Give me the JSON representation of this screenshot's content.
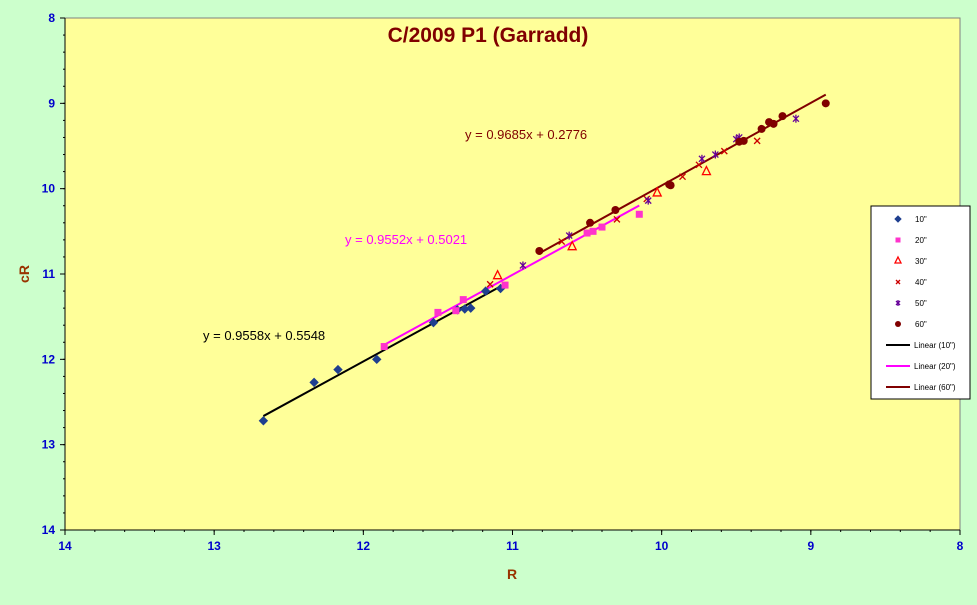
{
  "chart_data": {
    "type": "scatter",
    "title": "C/2009 P1 (Garradd)",
    "xlabel": "R",
    "ylabel": "cR",
    "xlim": [
      14,
      8
    ],
    "ylim": [
      14,
      8
    ],
    "x_reversed": true,
    "y_reversed": true,
    "x_ticks": [
      "14",
      "13",
      "12",
      "11",
      "10",
      "9",
      "8"
    ],
    "y_ticks": [
      "8",
      "9",
      "10",
      "11",
      "12",
      "13",
      "14"
    ],
    "grid": false,
    "legend_position": "right",
    "plot_background": "#ffff99",
    "series": [
      {
        "name": "10\"",
        "marker": "diamond",
        "color": "#1f3f8f",
        "x": [
          12.67,
          12.33,
          12.17,
          11.91,
          11.53,
          11.37,
          11.32,
          11.28,
          11.18,
          11.08
        ],
        "y": [
          12.72,
          12.27,
          12.12,
          12.0,
          11.57,
          11.42,
          11.41,
          11.4,
          11.2,
          11.17
        ]
      },
      {
        "name": "20\"",
        "marker": "square",
        "color": "#ff33cc",
        "x": [
          11.86,
          11.5,
          11.38,
          11.33,
          11.05,
          10.5,
          10.46,
          10.4,
          10.15
        ],
        "y": [
          11.85,
          11.45,
          11.43,
          11.3,
          11.13,
          10.52,
          10.5,
          10.45,
          10.3
        ]
      },
      {
        "name": "30\"",
        "marker": "triangle",
        "color": "#ff0000",
        "x": [
          11.1,
          10.6,
          10.03,
          9.7
        ],
        "y": [
          11.02,
          10.68,
          10.05,
          9.8
        ]
      },
      {
        "name": "40\"",
        "marker": "x",
        "color": "#cc0000",
        "x": [
          11.15,
          10.67,
          10.3,
          10.1,
          9.86,
          9.75,
          9.58,
          9.36
        ],
        "y": [
          11.12,
          10.62,
          10.36,
          10.12,
          9.86,
          9.72,
          9.56,
          9.44
        ]
      },
      {
        "name": "50\"",
        "marker": "star",
        "color": "#660099",
        "x": [
          10.93,
          10.62,
          10.09,
          9.73,
          9.64,
          9.5,
          9.48,
          9.1
        ],
        "y": [
          10.9,
          10.55,
          10.14,
          9.65,
          9.6,
          9.42,
          9.4,
          9.18
        ]
      },
      {
        "name": "60\"",
        "marker": "circle",
        "color": "#800000",
        "x": [
          10.82,
          10.48,
          10.31,
          9.95,
          9.94,
          9.48,
          9.45,
          9.33,
          9.28,
          9.25,
          9.19,
          8.9
        ],
        "y": [
          10.73,
          10.4,
          10.25,
          9.95,
          9.96,
          9.45,
          9.44,
          9.3,
          9.22,
          9.24,
          9.15,
          9.0
        ]
      },
      {
        "name": "Linear (10\")",
        "type": "line",
        "color": "#000000",
        "slope": 0.9558,
        "intercept": 0.5548,
        "x_range": [
          12.67,
          11.08
        ]
      },
      {
        "name": "Linear (20\")",
        "type": "line",
        "color": "#ff00ff",
        "slope": 0.9552,
        "intercept": 0.5021,
        "x_range": [
          11.86,
          10.15
        ]
      },
      {
        "name": "Linear (60\")",
        "type": "line",
        "color": "#800000",
        "slope": 0.9685,
        "intercept": 0.2776,
        "x_range": [
          10.82,
          8.9
        ]
      }
    ],
    "annotations": [
      {
        "text": "y = 0.9685x + 0.2776",
        "color": "#800000"
      },
      {
        "text": "y = 0.9552x + 0.5021",
        "color": "#ff00ff"
      },
      {
        "text": "y = 0.9558x + 0.5548",
        "color": "#000000"
      }
    ]
  }
}
